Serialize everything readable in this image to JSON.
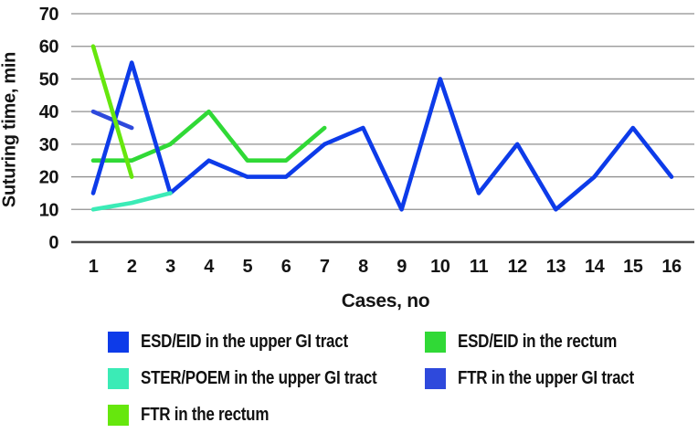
{
  "axis": {
    "x_title": "Cases, no",
    "y_title": "Suturing time, min"
  },
  "chart_data": {
    "type": "line",
    "title": "",
    "xlabel": "Cases, no",
    "ylabel": "Suturing time, min",
    "categories": [
      "1",
      "2",
      "3",
      "4",
      "5",
      "6",
      "7",
      "8",
      "9",
      "10",
      "11",
      "12",
      "13",
      "14",
      "15",
      "16"
    ],
    "ylim": [
      0,
      70
    ],
    "yticks": [
      0,
      10,
      20,
      30,
      40,
      50,
      60,
      70
    ],
    "grid": "horizontal-only",
    "legend_position": "bottom",
    "series": [
      {
        "id": "esd-eid-upper-gi",
        "name": "ESD/EID in the upper GI tract",
        "color": "#0d3be9",
        "x": [
          1,
          2,
          3,
          4,
          5,
          6,
          7,
          8,
          9,
          10,
          11,
          12,
          13,
          14,
          15,
          16
        ],
        "y": [
          15,
          55,
          15,
          25,
          20,
          20,
          30,
          35,
          10,
          50,
          15,
          30,
          10,
          20,
          35,
          20
        ]
      },
      {
        "id": "esd-eid-rectum",
        "name": "ESD/EID in the rectum",
        "color": "#30d936",
        "x": [
          1,
          2,
          3,
          4,
          5,
          6,
          7
        ],
        "y": [
          25,
          25,
          30,
          40,
          25,
          25,
          35
        ]
      },
      {
        "id": "ster-poem-upper-gi",
        "name": "STER/POEM in the upper GI tract",
        "color": "#3bebb6",
        "x": [
          1,
          2,
          3
        ],
        "y": [
          10,
          12,
          15
        ]
      },
      {
        "id": "ftr-upper-gi",
        "name": "FTR in the upper GI tract",
        "color": "#2e49dc",
        "x": [
          1,
          2
        ],
        "y": [
          40,
          35
        ]
      },
      {
        "id": "ftr-rectum",
        "name": "FTR in the rectum",
        "color": "#66e70d",
        "x": [
          1,
          2
        ],
        "y": [
          60,
          20
        ]
      }
    ],
    "draw_order": [
      1,
      3,
      0,
      2,
      4
    ],
    "legend_order": [
      0,
      1,
      2,
      3,
      4
    ]
  },
  "style": {
    "gridline_color": "#8f8f8f",
    "axisline_color": "#4d4d4d",
    "text_color": "#141414"
  }
}
